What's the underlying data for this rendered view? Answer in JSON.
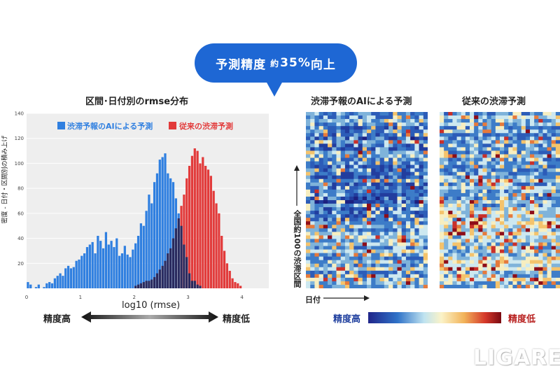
{
  "banner": {
    "part1": "予測精度",
    "part2": "約",
    "part3": "35%",
    "part4": "向上"
  },
  "chart_data": {
    "type": "bar",
    "title": "区間･日付別のrmse分布",
    "xlabel": "log10 (rmse)",
    "ylabel": "密度 - 日付・区間別の積み上げ",
    "xlim": [
      0,
      4.5
    ],
    "ylim": [
      0,
      140
    ],
    "x_ticks": [
      "0",
      "1",
      "2",
      "3",
      "4"
    ],
    "y_ticks": [
      "20",
      "40",
      "60",
      "80",
      "100",
      "120",
      "140"
    ],
    "grid": true,
    "legend": "top",
    "bin_start": 0.0,
    "bin_width": 0.05,
    "series": [
      {
        "name": "渋滞予報のAIによる予測",
        "color": "#2f7fe0",
        "values": [
          5,
          3,
          0,
          1,
          3,
          0,
          1,
          4,
          5,
          4,
          8,
          10,
          12,
          10,
          16,
          18,
          16,
          17,
          22,
          23,
          26,
          28,
          33,
          35,
          37,
          28,
          42,
          38,
          32,
          45,
          35,
          38,
          33,
          40,
          26,
          28,
          34,
          27,
          25,
          31,
          36,
          42,
          52,
          50,
          62,
          75,
          68,
          85,
          92,
          103,
          105,
          108,
          92,
          88,
          85,
          72,
          60,
          50,
          35,
          25,
          12,
          6,
          6,
          3,
          2,
          0,
          0,
          0,
          0,
          0,
          0,
          0,
          0,
          0,
          0,
          0,
          0,
          0,
          0,
          0,
          0,
          0,
          0,
          0,
          0,
          0,
          0,
          0,
          0,
          0
        ]
      },
      {
        "name": "従来の渋滞予測",
        "color": "#e23a3a",
        "values": [
          0,
          0,
          0,
          0,
          0,
          0,
          0,
          0,
          0,
          0,
          0,
          0,
          0,
          0,
          0,
          0,
          0,
          0,
          0,
          0,
          0,
          0,
          0,
          0,
          0,
          0,
          0,
          0,
          0,
          0,
          0,
          0,
          0,
          0,
          0,
          0,
          0,
          0,
          0,
          0,
          2,
          3,
          4,
          5,
          6,
          6,
          7,
          9,
          12,
          15,
          18,
          22,
          28,
          32,
          40,
          48,
          56,
          66,
          75,
          88,
          98,
          106,
          112,
          110,
          100,
          105,
          98,
          95,
          90,
          78,
          68,
          60,
          42,
          30,
          20,
          14,
          8,
          5,
          4,
          2,
          0,
          0,
          0,
          0,
          0,
          0,
          0,
          0,
          0,
          0
        ]
      }
    ]
  },
  "labels": {
    "acc_high": "精度高",
    "acc_low": "精度低"
  },
  "heatmaps": {
    "ai_title": "渋滞予報のAIによる予測",
    "old_title": "従来の渋滞予測",
    "y_axis": "全国約100の渋滞区間",
    "x_axis": "日付",
    "scale_high": "精度高",
    "scale_low": "精度低"
  },
  "colors": {
    "ai": "#2f7fe0",
    "overlap": "#2a2a5e",
    "conventional": "#e23a3a",
    "bubble": "#1e67d4",
    "scale_text": "#1f3f9e",
    "scale_low_text": "#b8201f"
  },
  "watermark": "LIGARE"
}
